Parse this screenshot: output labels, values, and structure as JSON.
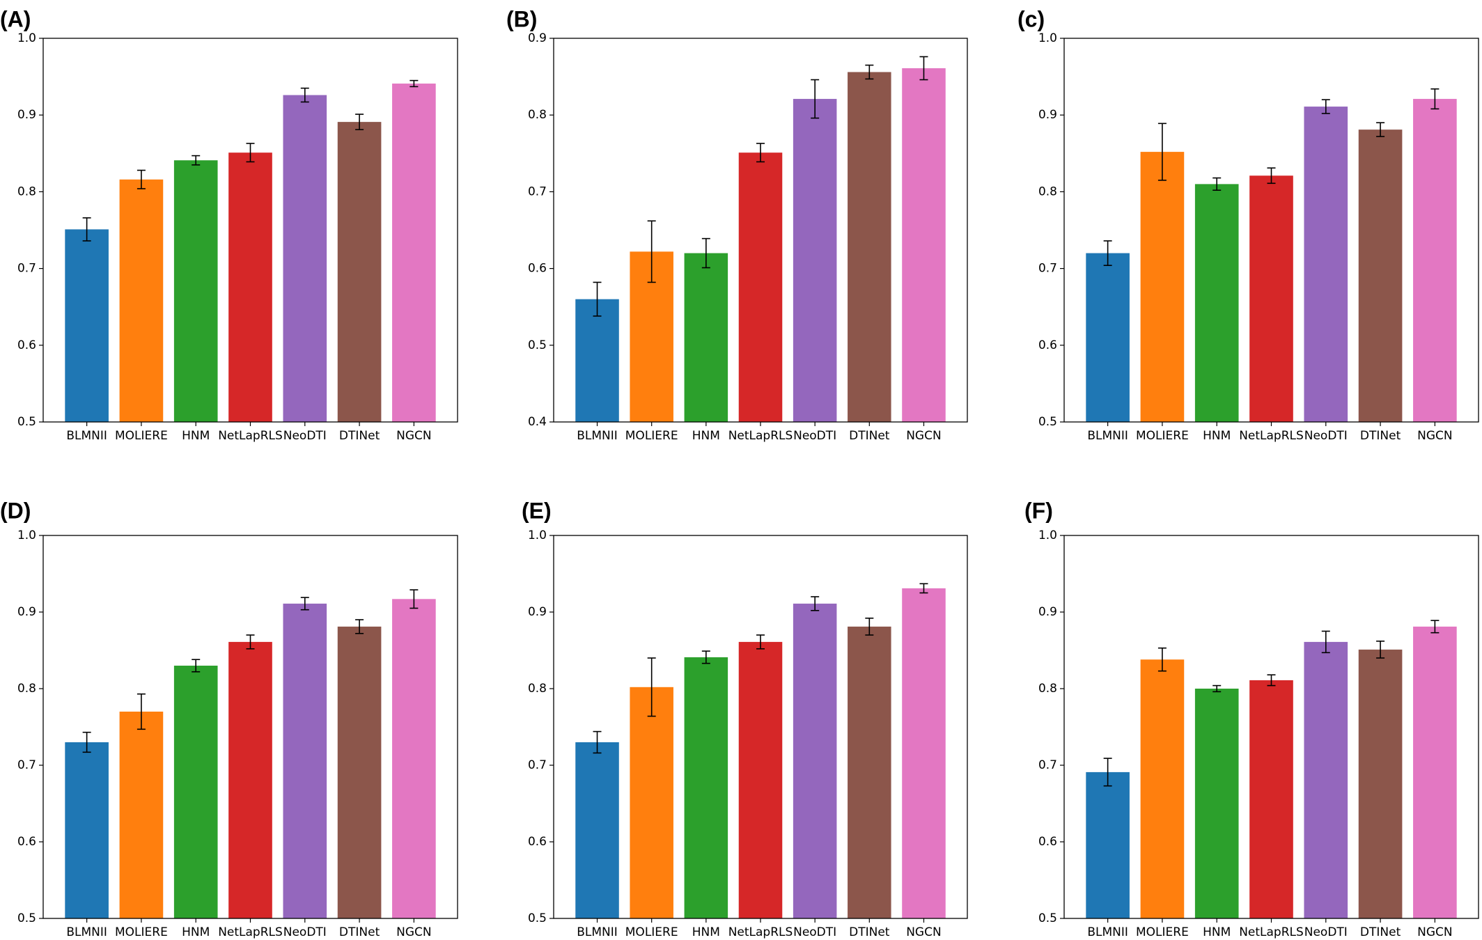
{
  "colors": [
    "#1f77b4",
    "#ff7f0e",
    "#2ca02c",
    "#d62728",
    "#9467bd",
    "#8c564b",
    "#e377c2"
  ],
  "chart_data": [
    {
      "type": "bar",
      "panel_label": "(A)",
      "categories": [
        "BLMNII",
        "MOLIERE",
        "HNM",
        "NetLapRLS",
        "NeoDTI",
        "DTINet",
        "NGCN"
      ],
      "values": [
        0.751,
        0.816,
        0.841,
        0.851,
        0.926,
        0.891,
        0.941
      ],
      "errors": [
        0.015,
        0.012,
        0.006,
        0.012,
        0.009,
        0.01,
        0.004
      ],
      "ylim": [
        0.5,
        1.0
      ],
      "yticks": [
        "0.5",
        "0.6",
        "0.7",
        "0.8",
        "0.9",
        "1.0"
      ],
      "title": "",
      "xlabel": "",
      "ylabel": "",
      "grid": false
    },
    {
      "type": "bar",
      "panel_label": "(B)",
      "categories": [
        "BLMNII",
        "MOLIERE",
        "HNM",
        "NetLapRLS",
        "NeoDTI",
        "DTINet",
        "NGCN"
      ],
      "values": [
        0.56,
        0.622,
        0.62,
        0.751,
        0.821,
        0.856,
        0.861
      ],
      "errors": [
        0.022,
        0.04,
        0.019,
        0.012,
        0.025,
        0.009,
        0.015
      ],
      "ylim": [
        0.4,
        0.9
      ],
      "yticks": [
        "0.4",
        "0.5",
        "0.6",
        "0.7",
        "0.8",
        "0.9"
      ],
      "title": "",
      "xlabel": "",
      "ylabel": "",
      "grid": false
    },
    {
      "type": "bar",
      "panel_label": "(c)",
      "categories": [
        "BLMNII",
        "MOLIERE",
        "HNM",
        "NetLapRLS",
        "NeoDTI",
        "DTINet",
        "NGCN"
      ],
      "values": [
        0.72,
        0.852,
        0.81,
        0.821,
        0.911,
        0.881,
        0.921
      ],
      "errors": [
        0.016,
        0.037,
        0.008,
        0.01,
        0.009,
        0.009,
        0.013
      ],
      "ylim": [
        0.5,
        1.0
      ],
      "yticks": [
        "0.5",
        "0.6",
        "0.7",
        "0.8",
        "0.9",
        "1.0"
      ],
      "title": "",
      "xlabel": "",
      "ylabel": "",
      "grid": false
    },
    {
      "type": "bar",
      "panel_label": "(D)",
      "categories": [
        "BLMNII",
        "MOLIERE",
        "HNM",
        "NetLapRLS",
        "NeoDTI",
        "DTINet",
        "NGCN"
      ],
      "values": [
        0.73,
        0.77,
        0.83,
        0.861,
        0.911,
        0.881,
        0.917
      ],
      "errors": [
        0.013,
        0.023,
        0.008,
        0.009,
        0.008,
        0.009,
        0.012
      ],
      "ylim": [
        0.5,
        1.0
      ],
      "yticks": [
        "0.5",
        "0.6",
        "0.7",
        "0.8",
        "0.9",
        "1.0"
      ],
      "title": "",
      "xlabel": "",
      "ylabel": "",
      "grid": false
    },
    {
      "type": "bar",
      "panel_label": "(E)",
      "categories": [
        "BLMNII",
        "MOLIERE",
        "HNM",
        "NetLapRLS",
        "NeoDTI",
        "DTINet",
        "NGCN"
      ],
      "values": [
        0.73,
        0.802,
        0.841,
        0.861,
        0.911,
        0.881,
        0.931
      ],
      "errors": [
        0.014,
        0.038,
        0.008,
        0.009,
        0.009,
        0.011,
        0.006
      ],
      "ylim": [
        0.5,
        1.0
      ],
      "yticks": [
        "0.5",
        "0.6",
        "0.7",
        "0.8",
        "0.9",
        "1.0"
      ],
      "title": "",
      "xlabel": "",
      "ylabel": "",
      "grid": false
    },
    {
      "type": "bar",
      "panel_label": "(F)",
      "categories": [
        "BLMNII",
        "MOLIERE",
        "HNM",
        "NetLapRLS",
        "NeoDTI",
        "DTINet",
        "NGCN"
      ],
      "values": [
        0.691,
        0.838,
        0.8,
        0.811,
        0.861,
        0.851,
        0.881
      ],
      "errors": [
        0.018,
        0.015,
        0.004,
        0.007,
        0.014,
        0.011,
        0.008
      ],
      "ylim": [
        0.5,
        1.0
      ],
      "yticks": [
        "0.5",
        "0.6",
        "0.7",
        "0.8",
        "0.9",
        "1.0"
      ],
      "title": "",
      "xlabel": "",
      "ylabel": "",
      "grid": false
    }
  ]
}
